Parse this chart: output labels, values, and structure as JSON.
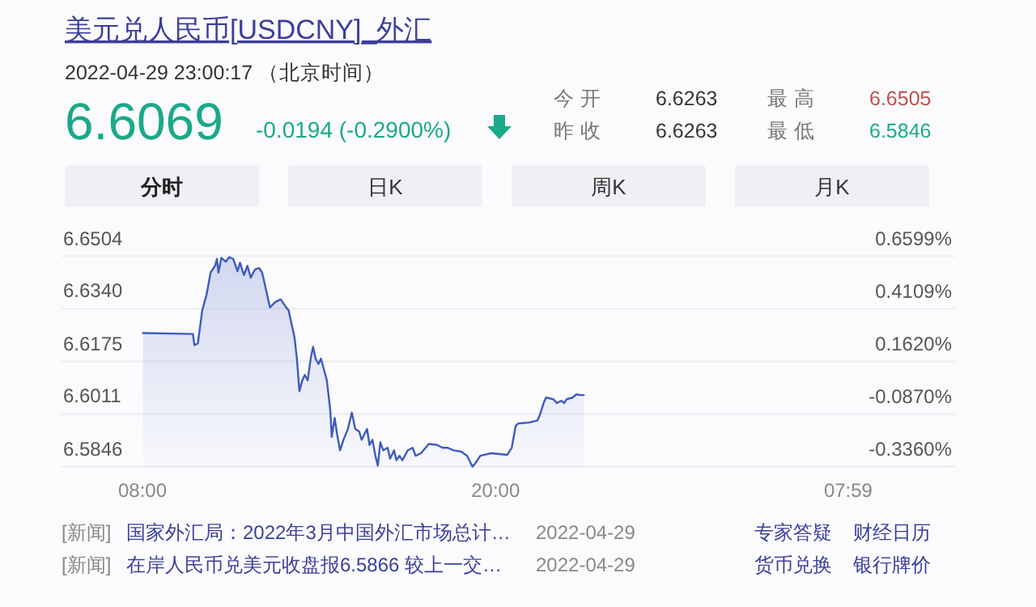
{
  "chart_data": {
    "type": "area",
    "title": "美元兑人民币[USDCNY]_外汇",
    "subtitle": "2022-04-29 23:00:17 （北京时间）",
    "annotations": [
      "6.6069",
      "-0.0194 (-0.2900%)",
      "今 开",
      "6.6263",
      "昨 收",
      "6.6263",
      "最 高",
      "6.6505",
      "最 低",
      "6.5846",
      "分时",
      "日K",
      "周K",
      "月K",
      "[新闻]",
      "国家外汇局：2022年3月中国外汇市场总计…",
      "2022-04-29",
      "[新闻]",
      "在岸人民币兑美元收盘报6.5866 较上一交…",
      "2022-04-29",
      "专家答疑",
      "财经日历",
      "货币兑换",
      "银行牌价"
    ],
    "xlim": [
      "2022-04-29T05:15",
      "2022-04-30T11:37"
    ],
    "xticks": [
      {
        "value": "2022-04-29T08:00",
        "label": "08:00"
      },
      {
        "value": "2022-04-29T20:00",
        "label": "20:00"
      },
      {
        "value": "2022-04-30T07:59",
        "label": "07:59"
      }
    ],
    "ylim": [
      6.5846,
      6.6504
    ],
    "yticks": [
      6.5846,
      6.6011,
      6.6175,
      {
        "value": 6.634,
        "label": "6.6340"
      },
      6.6504
    ],
    "y2lim": [
      -0.336,
      0.6599
    ],
    "y2ticks": [
      {
        "value": -0.336,
        "label": "-0.3360%"
      },
      {
        "value": -0.087,
        "label": "-0.0870%"
      },
      {
        "value": 0.162,
        "label": "0.1620%"
      },
      {
        "value": 0.4109,
        "label": "0.4109%"
      },
      {
        "value": 0.6599,
        "label": "0.6599%"
      }
    ],
    "grid": "y",
    "series": [
      {
        "color": "#3f5bbf",
        "x": [
          "2022-04-29T08:01",
          "2022-04-29T09:43",
          "2022-04-29T09:46",
          "2022-04-29T09:53",
          "2022-04-29T10:02",
          "2022-04-29T10:11",
          "2022-04-29T10:19",
          "2022-04-29T10:28",
          "2022-04-29T10:32",
          "2022-04-29T10:35",
          "2022-04-29T10:41",
          "2022-04-29T10:50",
          "2022-04-29T10:57",
          "2022-04-29T11:05",
          "2022-04-29T11:14",
          "2022-04-29T11:19",
          "2022-04-29T11:27",
          "2022-04-29T11:34",
          "2022-04-29T11:41",
          "2022-04-29T11:49",
          "2022-04-29T11:58",
          "2022-04-29T12:04",
          "2022-04-29T12:09",
          "2022-04-29T12:20",
          "2022-04-29T12:31",
          "2022-04-29T12:42",
          "2022-04-29T12:53",
          "2022-04-29T12:58",
          "2022-04-29T13:04",
          "2022-04-29T13:10",
          "2022-04-29T13:15",
          "2022-04-29T13:20",
          "2022-04-29T13:26",
          "2022-04-29T13:31",
          "2022-04-29T13:37",
          "2022-04-29T13:43",
          "2022-04-29T13:48",
          "2022-04-29T13:53",
          "2022-04-29T13:59",
          "2022-04-29T14:04",
          "2022-04-29T14:10",
          "2022-04-29T14:16",
          "2022-04-29T14:23",
          "2022-04-29T14:26",
          "2022-04-29T14:32",
          "2022-04-29T14:37",
          "2022-04-29T14:43",
          "2022-04-29T14:50",
          "2022-04-29T14:59",
          "2022-04-29T15:07",
          "2022-04-29T15:14",
          "2022-04-29T15:22",
          "2022-04-29T15:27",
          "2022-04-29T15:38",
          "2022-04-29T15:43",
          "2022-04-29T15:49",
          "2022-04-29T15:55",
          "2022-04-29T16:00",
          "2022-04-29T16:05",
          "2022-04-29T16:11",
          "2022-04-29T16:20",
          "2022-04-29T16:25",
          "2022-04-29T16:33",
          "2022-04-29T16:38",
          "2022-04-29T16:44",
          "2022-04-29T16:50",
          "2022-04-29T17:01",
          "2022-04-29T17:11",
          "2022-04-29T17:17",
          "2022-04-29T17:28",
          "2022-04-29T17:44",
          "2022-04-29T18:01",
          "2022-04-29T18:12",
          "2022-04-29T18:23",
          "2022-04-29T18:34",
          "2022-04-29T18:50",
          "2022-04-29T19:02",
          "2022-04-29T19:13",
          "2022-04-29T19:18",
          "2022-04-29T19:29",
          "2022-04-29T19:51",
          "2022-04-29T20:24",
          "2022-04-29T20:33",
          "2022-04-29T20:41",
          "2022-04-29T20:46",
          "2022-04-29T21:08",
          "2022-04-29T21:25",
          "2022-04-29T21:30",
          "2022-04-29T21:39",
          "2022-04-29T21:43",
          "2022-04-29T21:58",
          "2022-04-29T22:05",
          "2022-04-29T22:14",
          "2022-04-29T22:20",
          "2022-04-29T22:25",
          "2022-04-29T22:37",
          "2022-04-29T22:45",
          "2022-04-29T22:53",
          "2022-04-29T23:00"
        ],
        "values": [
          6.6264,
          6.6261,
          6.6226,
          6.6231,
          6.6335,
          6.6386,
          6.6453,
          6.6474,
          6.6496,
          6.6453,
          6.6499,
          6.6487,
          6.6501,
          6.6496,
          6.6457,
          6.6484,
          6.6445,
          6.6474,
          6.6437,
          6.6462,
          6.6467,
          6.6453,
          6.642,
          6.6344,
          6.6361,
          6.6369,
          6.6344,
          6.6335,
          6.6293,
          6.6251,
          6.6184,
          6.6082,
          6.6116,
          6.6133,
          6.6116,
          6.6184,
          6.6221,
          6.6184,
          6.6167,
          6.6184,
          6.615,
          6.6116,
          6.6023,
          6.5939,
          6.5998,
          6.5947,
          6.5897,
          6.593,
          6.5964,
          6.6015,
          6.5964,
          6.5956,
          6.593,
          6.5964,
          6.5914,
          6.593,
          6.588,
          6.5849,
          6.5922,
          6.5897,
          6.5905,
          6.5871,
          6.5897,
          6.5866,
          6.588,
          6.5866,
          6.5897,
          6.5905,
          6.588,
          6.5888,
          6.5917,
          6.5914,
          6.5905,
          6.5905,
          6.5897,
          6.5893,
          6.588,
          6.5846,
          6.5855,
          6.588,
          6.5888,
          6.5883,
          6.5905,
          6.5973,
          6.5981,
          6.5984,
          6.599,
          6.6006,
          6.6049,
          6.6062,
          6.6057,
          6.6045,
          6.6052,
          6.6045,
          6.6057,
          6.6062,
          6.6072,
          6.607,
          6.607
        ]
      }
    ]
  }
}
